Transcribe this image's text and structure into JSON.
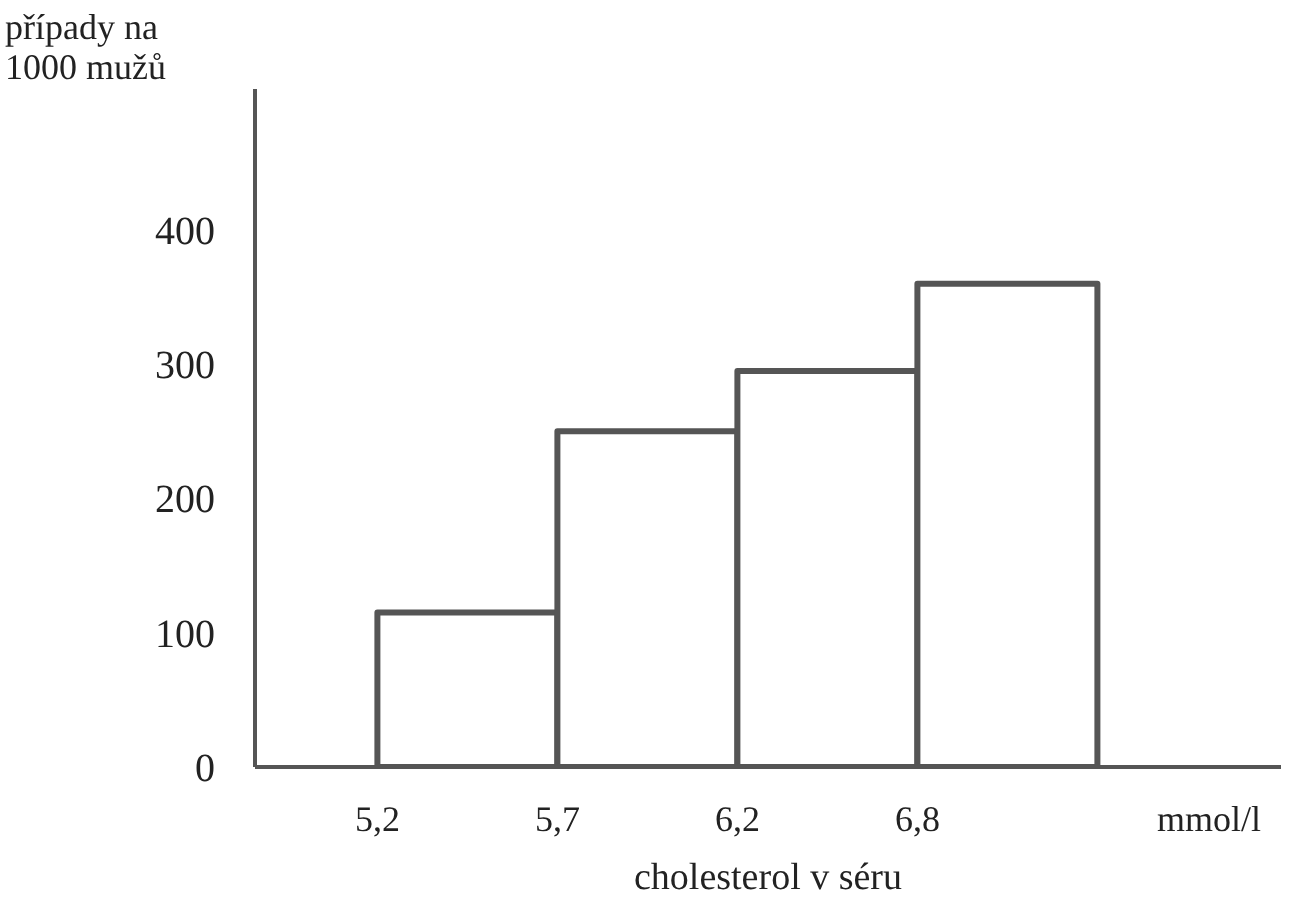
{
  "chart_data": {
    "type": "bar",
    "xlabel": "cholesterol v séru",
    "ylabel": "případy na 1000 mužů",
    "categories": [
      "5,2",
      "5,7",
      "6,2",
      "6,8"
    ],
    "values": [
      115,
      250,
      295,
      360
    ],
    "color": "#ffffff",
    "ylim": [
      0,
      505
    ],
    "yticks": [
      0,
      100,
      200,
      300,
      400
    ],
    "grid": false,
    "annotations": [
      "mmol/l"
    ]
  }
}
